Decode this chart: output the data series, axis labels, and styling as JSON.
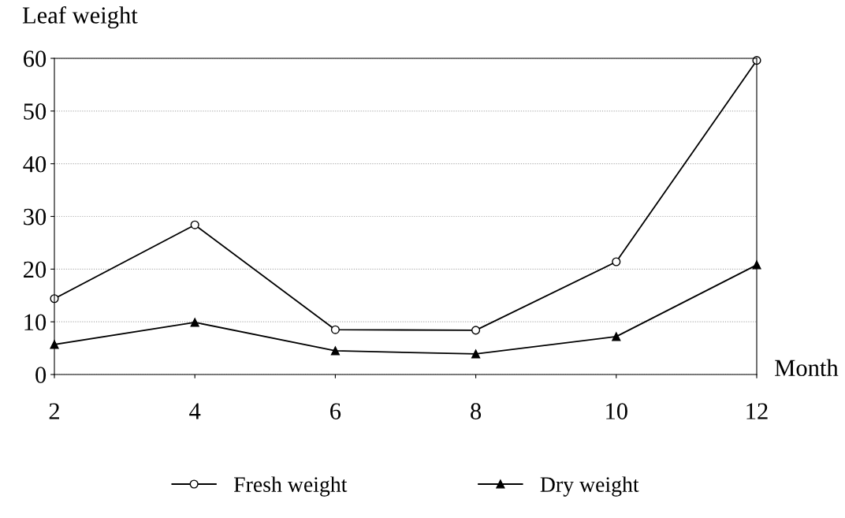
{
  "chart_data": {
    "type": "line",
    "ylabel": "Leaf weight",
    "xlabel": "Month",
    "x": [
      2,
      4,
      6,
      8,
      10,
      12
    ],
    "series": [
      {
        "name": "Fresh weight",
        "color": "#000000",
        "marker": "circle",
        "values": [
          14.4,
          28.4,
          8.5,
          8.4,
          21.4,
          59.6
        ]
      },
      {
        "name": "Dry weight",
        "color": "#000000",
        "marker": "triangle",
        "values": [
          5.7,
          9.9,
          4.5,
          3.9,
          7.2,
          20.8
        ]
      }
    ],
    "xlim": [
      2,
      12
    ],
    "xticks": [
      2,
      4,
      6,
      8,
      10,
      12
    ],
    "ylim": [
      0,
      60
    ],
    "yticks": [
      0,
      10,
      20,
      30,
      40,
      50,
      60
    ],
    "grid": "y",
    "legend": "bottom",
    "line_style": "solid"
  }
}
